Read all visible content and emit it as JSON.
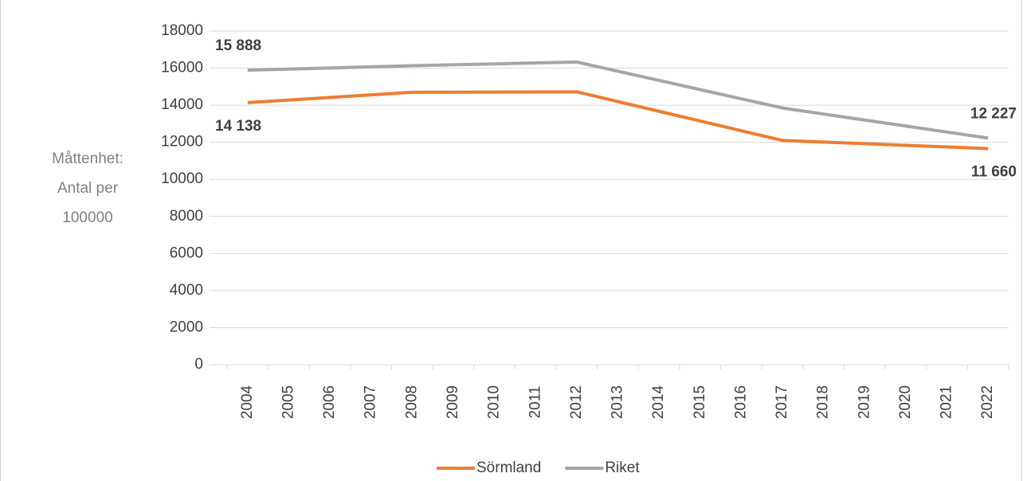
{
  "chart_data": {
    "type": "line",
    "y_label": [
      "Måttenhet:",
      "Antal per",
      "100000"
    ],
    "categories": [
      "2004",
      "2005",
      "2006",
      "2007",
      "2008",
      "2009",
      "2010",
      "2011",
      "2012",
      "2013",
      "2014",
      "2015",
      "2016",
      "2017",
      "2018",
      "2019",
      "2020",
      "2021",
      "2022"
    ],
    "series": [
      {
        "name": "Sörmland",
        "color": "#ed7d31",
        "values": [
          14138,
          14279,
          14419,
          14560,
          14700,
          14705,
          14710,
          14715,
          14720,
          14196,
          13672,
          13148,
          12624,
          12100,
          12012,
          11924,
          11836,
          11748,
          11660
        ],
        "value_labels": [
          "14 138",
          null,
          null,
          null,
          null,
          null,
          null,
          null,
          null,
          null,
          null,
          null,
          null,
          null,
          null,
          null,
          null,
          null,
          "11 660"
        ]
      },
      {
        "name": "Riket",
        "color": "#a5a5a5",
        "values": [
          15888,
          15949,
          16009,
          16070,
          16130,
          16180,
          16230,
          16280,
          16330,
          15834,
          15338,
          14842,
          14346,
          13850,
          13525,
          13201,
          12876,
          12552,
          12227
        ],
        "value_labels": [
          "15 888",
          null,
          null,
          null,
          null,
          null,
          null,
          null,
          null,
          null,
          null,
          null,
          null,
          null,
          null,
          null,
          null,
          null,
          "12 227"
        ]
      }
    ],
    "ylim": [
      0,
      18000
    ],
    "yticks": [
      0,
      2000,
      4000,
      6000,
      8000,
      10000,
      12000,
      14000,
      16000,
      18000
    ],
    "grid": true,
    "legend": "bottom"
  }
}
